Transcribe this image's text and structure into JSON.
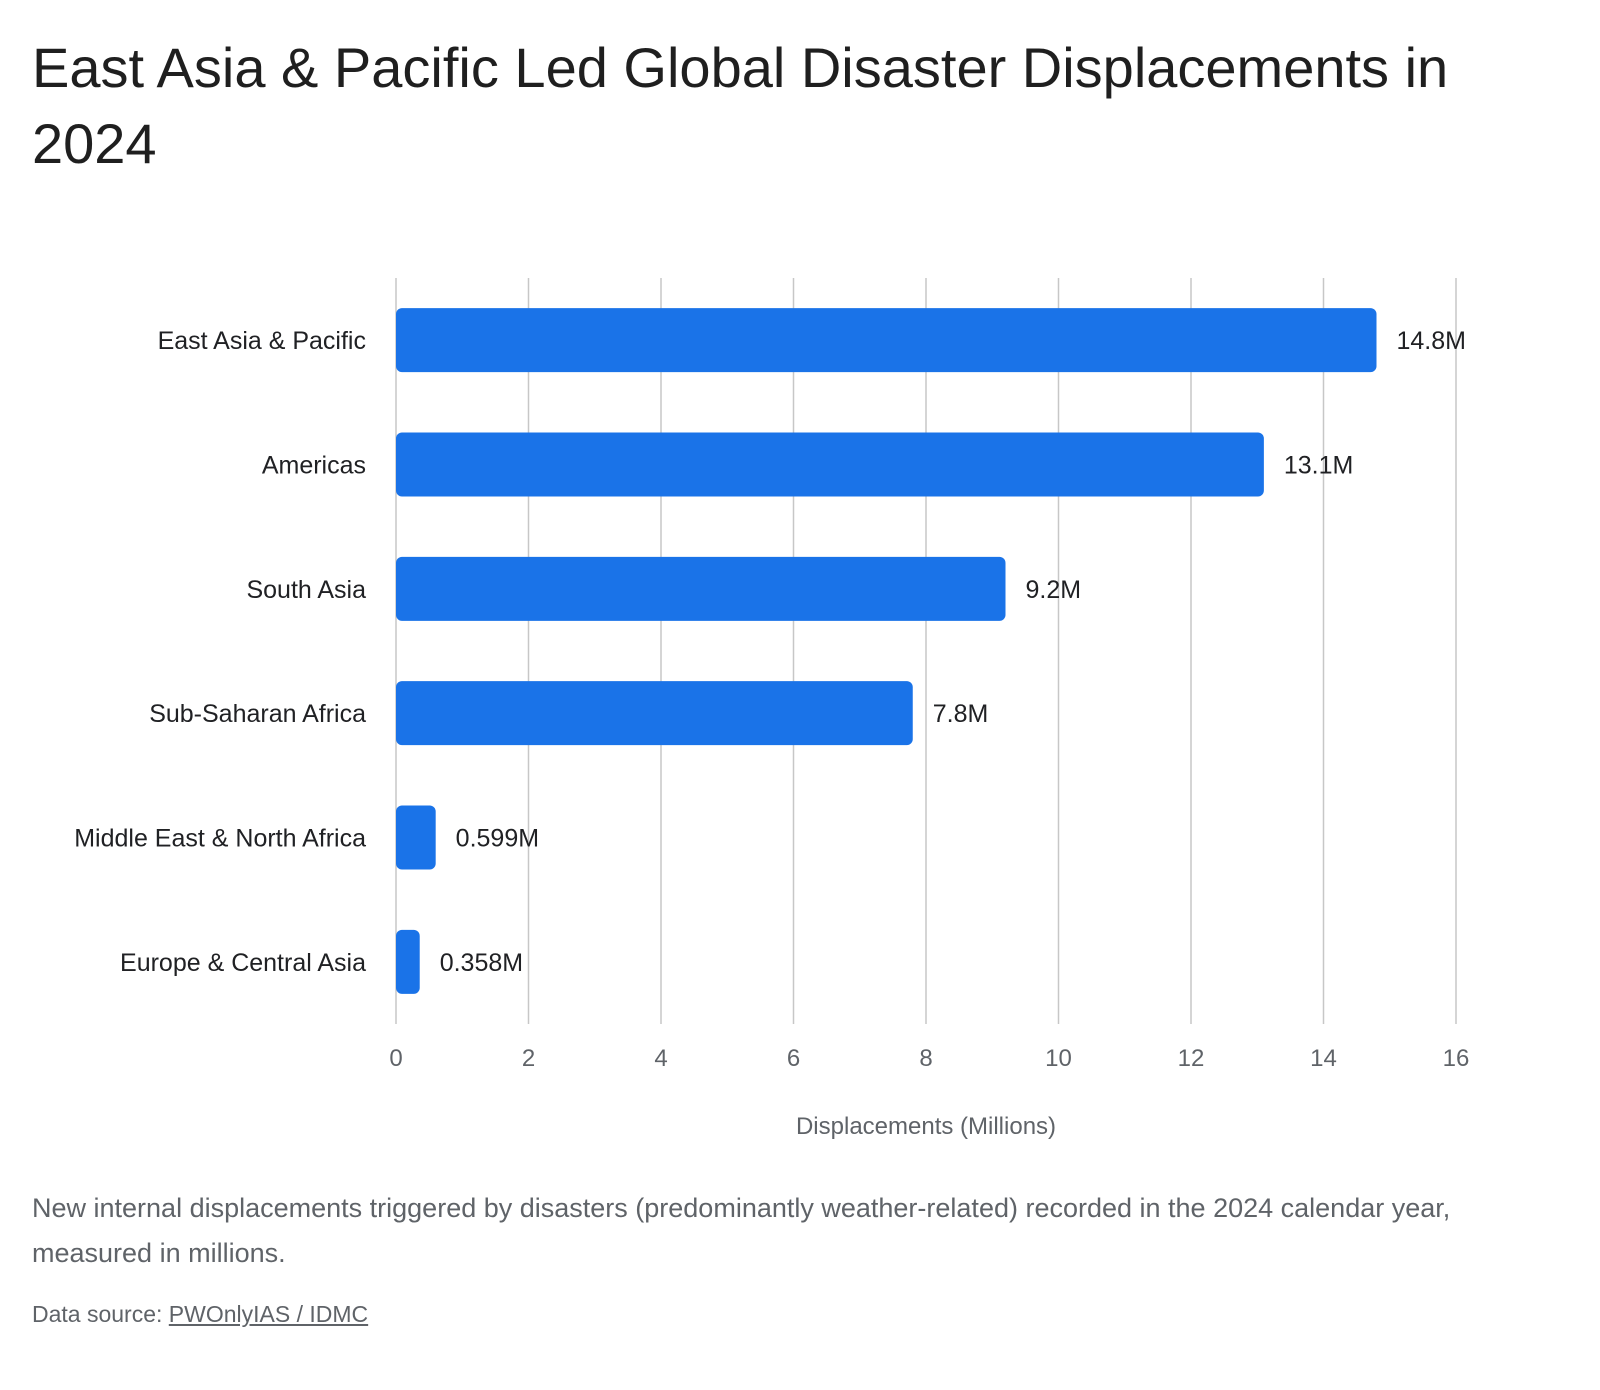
{
  "header": {
    "title": "East Asia & Pacific Led Global Disaster Displacements in 2024"
  },
  "chart_data": {
    "type": "bar",
    "orientation": "horizontal",
    "title": "East Asia & Pacific Led Global Disaster Displacements in 2024",
    "xlabel": "Displacements (Millions)",
    "ylabel": "",
    "xlim": [
      0,
      16
    ],
    "x_ticks": [
      "0",
      "2",
      "4",
      "6",
      "8",
      "10",
      "12",
      "14",
      "16"
    ],
    "grid": true,
    "categories": [
      "East Asia & Pacific",
      "Americas",
      "South Asia",
      "Sub-Saharan Africa",
      "Middle East & North Africa",
      "Europe & Central Asia"
    ],
    "values": [
      14.8,
      13.1,
      9.2,
      7.8,
      0.599,
      0.358
    ],
    "data_labels": [
      "14.8M",
      "13.1M",
      "9.2M",
      "7.8M",
      "0.599M",
      "0.358M"
    ],
    "bar_color": "#1a73e8"
  },
  "footer": {
    "caption": "New internal displacements triggered by disasters (predominantly weather-related) recorded in the 2024 calendar year, measured in millions.",
    "source_prefix": "Data source: ",
    "source_link": "PWOnlyIAS / IDMC"
  },
  "colors": {
    "bar": "#1a73e8",
    "gridline": "#c7c7c7",
    "text": "#202124",
    "muted_text": "#5f6368"
  }
}
